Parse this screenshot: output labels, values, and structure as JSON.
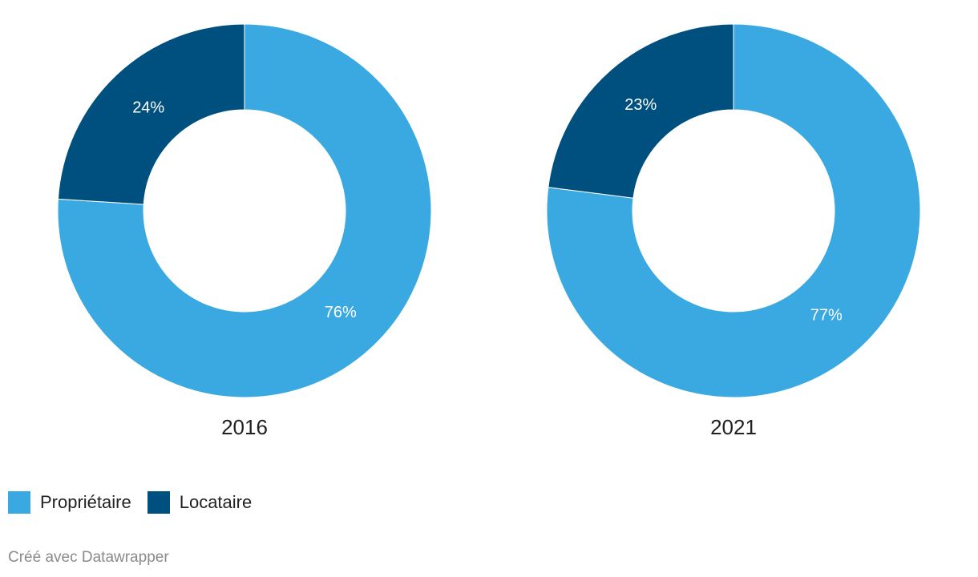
{
  "chart_data": {
    "type": "pie",
    "variant": "donut",
    "charts": [
      {
        "title": "2016",
        "slices": [
          {
            "label": "Propriétaire",
            "value": 76,
            "value_label": "76%"
          },
          {
            "label": "Locataire",
            "value": 24,
            "value_label": "24%"
          }
        ]
      },
      {
        "title": "2021",
        "slices": [
          {
            "label": "Propriétaire",
            "value": 77,
            "value_label": "77%"
          },
          {
            "label": "Locataire",
            "value": 23,
            "value_label": "23%"
          }
        ]
      }
    ],
    "legend": {
      "placement": "bottom-left",
      "items": [
        {
          "label": "Propriétaire",
          "color": "#3aa9e1"
        },
        {
          "label": "Locataire",
          "color": "#00507f"
        }
      ]
    },
    "colors": {
      "Propriétaire": "#3aa9e1",
      "Locataire": "#00507f"
    }
  },
  "footer": {
    "credit": "Créé avec Datawrapper"
  }
}
